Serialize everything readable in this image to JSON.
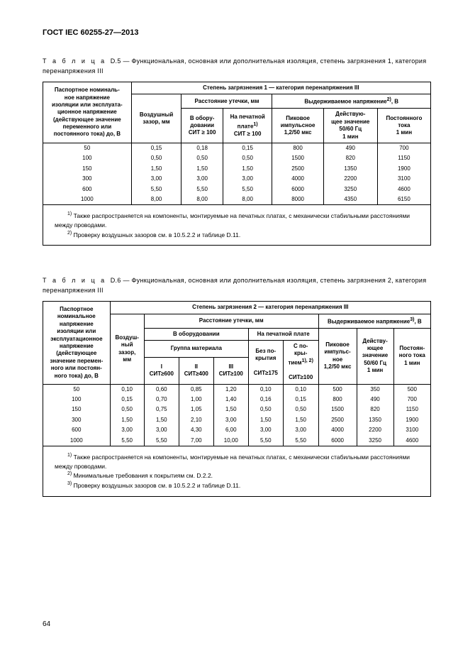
{
  "header": "ГОСТ IEC 60255-27—2013",
  "page_number": "64",
  "d5": {
    "caption_prefix": "Т а б л и ц а",
    "caption_num": "D.5",
    "caption_rest": "— Функциональная, основная или дополнительная  изоляция, степень загрязнения 1, категория перенапряжения III",
    "head_degree": "Степень загрязнения 1 — категория перенапряжения III",
    "head_creepage": "Расстояние утечки, мм",
    "head_withstand_pre": "Выдерживаемое напряжение",
    "head_withstand_post": ", В",
    "col1a": "Паспортное номиналь-",
    "col1b": "ное напряжение",
    "col1c": "изоляции или эксплуата-",
    "col1d": "ционное напряжение",
    "col1e": "(действующее значение",
    "col1f": "переменного или",
    "col1g": "постоянного тока) до, В",
    "col2a": "Воздушный",
    "col2b": "зазор, мм",
    "col3a": "В обору-",
    "col3b": "довании",
    "col3c": "СИТ ≥ 100",
    "col4a": "На печатной",
    "col4b_pre": "плате",
    "col4c": "СИТ ≥ 100",
    "col5a": "Пиковое",
    "col5b": "импульсное",
    "col5c": "1,2/50 мкс",
    "col6a": "Действую-",
    "col6b": "щее значение",
    "col6c": "50/60 Гц",
    "col6d": "1 мин",
    "col7a": "Постоянного",
    "col7b": "тока",
    "col7c": "1 мин",
    "rows": [
      [
        "50",
        "0,15",
        "0,18",
        "0,15",
        "800",
        "490",
        "700"
      ],
      [
        "100",
        "0,50",
        "0,50",
        "0,50",
        "1500",
        "820",
        "1150"
      ],
      [
        "150",
        "1,50",
        "1,50",
        "1,50",
        "2500",
        "1350",
        "1900"
      ],
      [
        "300",
        "3,00",
        "3,00",
        "3,00",
        "4000",
        "2200",
        "3100"
      ],
      [
        "600",
        "5,50",
        "5,50",
        "5,50",
        "6000",
        "3250",
        "4600"
      ],
      [
        "1000",
        "8,00",
        "8,00",
        "8,00",
        "8000",
        "4350",
        "6150"
      ]
    ],
    "fn1_pre": " Также распространяется на компоненты, монтируемые на печатных платах, с механически стабильными расстояниями между проводами.",
    "fn2_pre": " Проверку воздушных зазоров см. в 10.5.2.2 и таблице D.11."
  },
  "d6": {
    "caption_prefix": "Т а б л и ц а",
    "caption_num": "D.6",
    "caption_rest": "— Функциональная, основная или дополнительная  изоляция, степень загрязнения 2, категория перенапряжения III",
    "head_degree": "Степень загрязнения 2 — категория перенапряжения III",
    "head_creepage": "Расстояние утечки, мм",
    "head_withstand_pre": "Выдерживаемое напряжение",
    "head_withstand_post": ", В",
    "col1a": "Паспортное",
    "col1b": "номинальное",
    "col1c": "напряжение",
    "col1d": "изоляции или",
    "col1e": "эксплуатационное",
    "col1f": "напряжение",
    "col1g": "(действующее",
    "col1h": "значение перемен-",
    "col1i": "ного или постоян-",
    "col1j": "ного тока) до, В",
    "col2a": "Воздуш-",
    "col2b": "ный",
    "col2c": "зазор,",
    "col2d": "мм",
    "head_equip": "В оборудовании",
    "head_pcb": "На печатной плате",
    "head_matgrp": "Группа материала",
    "col_nocoat1": "Без по-",
    "col_nocoat2": "крытия",
    "col_coat1": "С по-",
    "col_coat2": "кры-",
    "col_coat3_pre": "тием",
    "sit600a": "I",
    "sit600b": "СИТ≥600",
    "sit400a": "II",
    "sit400b": "СИТ≥400",
    "sit100a": "III",
    "sit100b": "СИТ≥100",
    "sit175": "СИТ≥175",
    "sit100_2": "СИТ≥100",
    "col_peak1": "Пиковое",
    "col_peak2": "импульс-",
    "col_peak3": "ное",
    "col_peak4": "1,2/50 мкс",
    "col_rms1": "Действу-",
    "col_rms2": "ющее",
    "col_rms3": "значение",
    "col_rms4": "50/60 Гц",
    "col_rms5": "1 мин",
    "col_dc1": "Постоян-",
    "col_dc2": "ного тока",
    "col_dc3": "1 мин",
    "rows": [
      [
        "50",
        "0,10",
        "0,60",
        "0,85",
        "1,20",
        "0,10",
        "0,10",
        "500",
        "350",
        "500"
      ],
      [
        "100",
        "0,15",
        "0,70",
        "1,00",
        "1,40",
        "0,16",
        "0,15",
        "800",
        "490",
        "700"
      ],
      [
        "150",
        "0,50",
        "0,75",
        "1,05",
        "1,50",
        "0,50",
        "0,50",
        "1500",
        "820",
        "1150"
      ],
      [
        "300",
        "1,50",
        "1,50",
        "2,10",
        "3,00",
        "1,50",
        "1,50",
        "2500",
        "1350",
        "1900"
      ],
      [
        "600",
        "3,00",
        "3,00",
        "4,30",
        "6,00",
        "3,00",
        "3,00",
        "4000",
        "2200",
        "3100"
      ],
      [
        "1000",
        "5,50",
        "5,50",
        "7,00",
        "10,00",
        "5,50",
        "5,50",
        "6000",
        "3250",
        "4600"
      ]
    ],
    "fn1": " Также распространяется на компоненты, монтируемые на печатных платах, с механически стабильными расстояниями между проводами.",
    "fn2": " Минимальные требования к покрытиям см. D.2.2.",
    "fn3": " Проверку воздушных зазоров см. в 10.5.2.2 и таблице D.11."
  }
}
